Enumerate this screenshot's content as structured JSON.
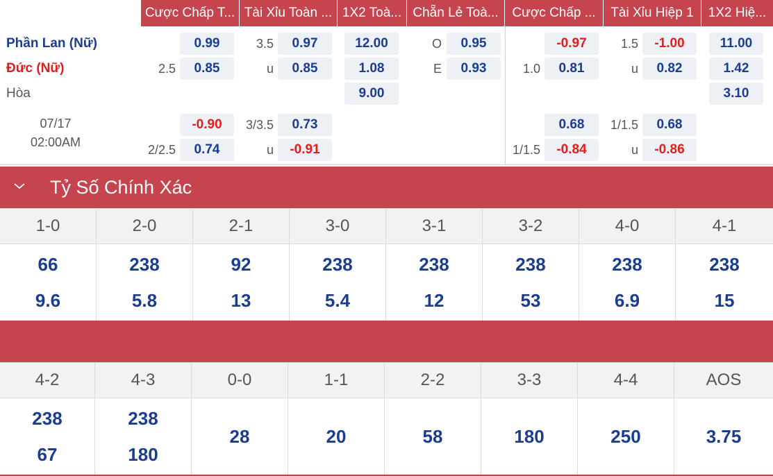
{
  "header": {
    "columns": [
      "Cược Chấp T...",
      "Tài Xỉu Toàn ...",
      "1X2 Toà...",
      "Chẵn Lẻ Toà...",
      "Cược Chấp ...",
      "Tài Xỉu Hiệp 1",
      "1X2 Hiệ..."
    ]
  },
  "match": {
    "home": "Phần Lan (Nữ)",
    "away": "Đức (Nữ)",
    "draw": "Hòa",
    "date": "07/17",
    "time": "02:00AM"
  },
  "odds": {
    "hdp_ft": {
      "line": "2.5",
      "home": "0.99",
      "away": "0.85",
      "line2": "2/2.5",
      "home2": "-0.90",
      "away2": "0.74"
    },
    "ou_ft": {
      "line": "3.5",
      "over": "0.97",
      "u": "u",
      "under": "0.85",
      "line2": "3/3.5",
      "over2": "0.73",
      "u2": "u",
      "under2": "-0.91"
    },
    "x12_ft": {
      "home": "12.00",
      "away": "1.08",
      "draw": "9.00"
    },
    "oe_ft": {
      "o_label": "O",
      "odd": "0.95",
      "e_label": "E",
      "even": "0.93"
    },
    "hdp_h1": {
      "line": "1.0",
      "home": "-0.97",
      "away": "0.81",
      "line2": "1/1.5",
      "home2": "0.68",
      "away2": "-0.84"
    },
    "ou_h1": {
      "line": "1.5",
      "over": "-1.00",
      "u": "u",
      "under": "0.82",
      "line2": "1/1.5",
      "over2": "0.68",
      "u2": "u",
      "under2": "-0.86"
    },
    "x12_h1": {
      "home": "11.00",
      "away": "1.42",
      "draw": "3.10"
    }
  },
  "correct_score": {
    "title": "Tỷ Số Chính Xác",
    "row1": {
      "scores": [
        "1-0",
        "2-0",
        "2-1",
        "3-0",
        "3-1",
        "3-2",
        "4-0",
        "4-1"
      ],
      "top": [
        "66",
        "238",
        "92",
        "238",
        "238",
        "238",
        "238",
        "238"
      ],
      "bottom": [
        "9.6",
        "5.8",
        "13",
        "5.4",
        "12",
        "53",
        "6.9",
        "15"
      ]
    },
    "row2": {
      "scores": [
        "4-2",
        "4-3",
        "0-0",
        "1-1",
        "2-2",
        "3-3",
        "4-4",
        "AOS"
      ],
      "top": [
        "238",
        "238"
      ],
      "bottom": [
        "67",
        "180"
      ],
      "single": [
        "28",
        "20",
        "58",
        "180",
        "250",
        "3.75"
      ]
    }
  },
  "colors": {
    "accent": "#c6444e",
    "home": "#1a3d8f",
    "away": "#e01e1e",
    "odd_bg": "#edf0f4"
  }
}
